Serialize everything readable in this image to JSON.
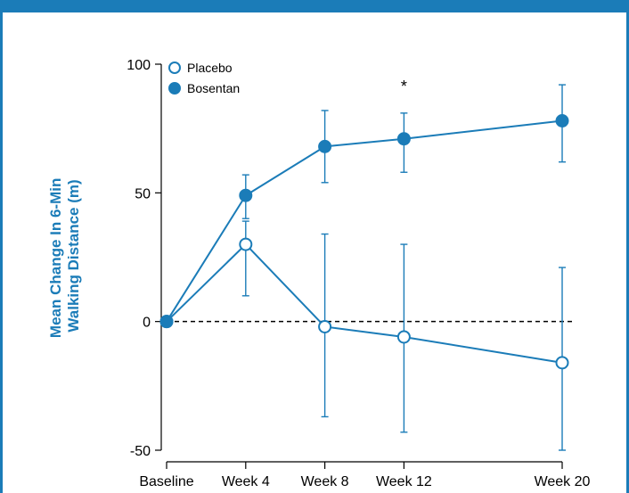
{
  "chart_data": {
    "type": "line",
    "title": "",
    "xlabel": "",
    "ylabel": [
      "Mean Change In 6-Min",
      "Walking Distance (m)"
    ],
    "categories": [
      "Baseline",
      "Week 4",
      "Week 8",
      "Week 12",
      "Week 20"
    ],
    "x_weeks": [
      0,
      4,
      8,
      12,
      20
    ],
    "ylim": [
      -50,
      100
    ],
    "yticks": [
      "100",
      "50",
      "0",
      "-50"
    ],
    "ytick_values": [
      100,
      50,
      0,
      -50
    ],
    "legend_position": "top-left",
    "reference_line": 0,
    "series": [
      {
        "name": "Placebo",
        "marker": "open-circle",
        "values": [
          0,
          30,
          -2,
          -6,
          -16
        ],
        "error_low": [
          0,
          10,
          -37,
          -43,
          -50
        ],
        "error_high": [
          0,
          39,
          34,
          30,
          21
        ]
      },
      {
        "name": "Bosentan",
        "marker": "filled-circle",
        "values": [
          0,
          49,
          68,
          71,
          78
        ],
        "error_low": [
          0,
          40,
          54,
          58,
          62
        ],
        "error_high": [
          0,
          57,
          82,
          81,
          92
        ]
      }
    ],
    "annotations": [
      {
        "text": "*",
        "x_week": 12,
        "y": 92
      }
    ],
    "colors": {
      "series": "#1b7cb8",
      "axis": "#000000",
      "frame": "#1b7cb8"
    }
  }
}
